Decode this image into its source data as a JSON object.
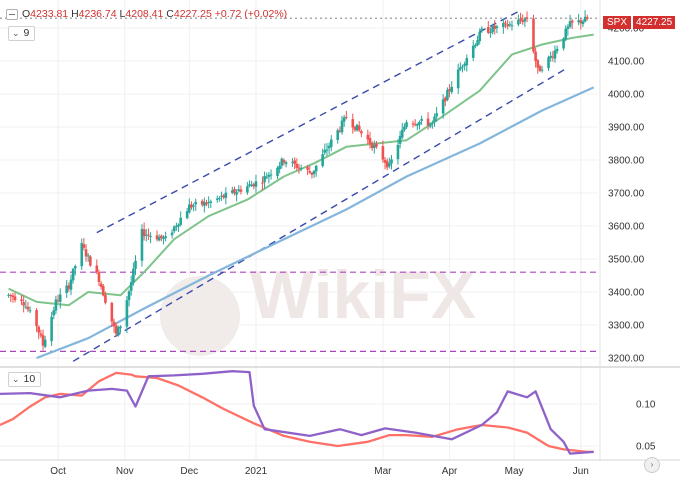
{
  "header": {
    "open_label": "O",
    "open": "4233.81",
    "high_label": "H",
    "high": "4236.74",
    "low_label": "L",
    "low": "4208.41",
    "close_label": "C",
    "close": "4227.25",
    "change": "+0.72 (+0.02%)"
  },
  "price_tag": {
    "symbol": "SPX",
    "value": "4227.25"
  },
  "indicator_labels": {
    "main": "9",
    "lower": "10"
  },
  "watermark": {
    "text": "WikiFX"
  },
  "colors": {
    "bull": "#26a69a",
    "bear": "#ef5350",
    "ma_short": "#7ec48b",
    "ma_long": "#83b6dc",
    "channel": "#3949ab",
    "support": "#ab47bc",
    "corr_a": "#ff7067",
    "corr_b": "#8e62c8",
    "price_tag": "#d32f2f"
  },
  "chart_data": [
    {
      "type": "candlestick",
      "symbol": "SPX",
      "ylim": [
        3180,
        4280
      ],
      "y_ticks": [
        "4200.00",
        "4100.00",
        "4000.00",
        "3900.00",
        "3800.00",
        "3700.00",
        "3600.00",
        "3500.00",
        "3400.00",
        "3300.00",
        "3200.00"
      ],
      "x_tick_labels": [
        "Oct",
        "Nov",
        "Dec",
        "2021",
        "Mar",
        "Apr",
        "May",
        "Jun"
      ],
      "price_anchors": {
        "dates": [
          "2020-09-08",
          "2020-09-14",
          "2020-09-21",
          "2020-09-24",
          "2020-09-30",
          "2020-10-06",
          "2020-10-12",
          "2020-10-20",
          "2020-10-28",
          "2020-10-30",
          "2020-11-04",
          "2020-11-09",
          "2020-11-20",
          "2020-12-01",
          "2020-12-10",
          "2020-12-21",
          "2021-01-04",
          "2021-01-14",
          "2021-01-27",
          "2021-02-12",
          "2021-02-25",
          "2021-03-04",
          "2021-03-12",
          "2021-03-24",
          "2021-04-06",
          "2021-04-16",
          "2021-04-29",
          "2021-05-07",
          "2021-05-12",
          "2021-05-19",
          "2021-05-27",
          "2021-06-04"
        ],
        "close": [
          3390,
          3380,
          3300,
          3240,
          3370,
          3420,
          3540,
          3440,
          3270,
          3300,
          3430,
          3580,
          3560,
          3660,
          3670,
          3700,
          3740,
          3800,
          3760,
          3930,
          3840,
          3780,
          3920,
          3910,
          4080,
          4190,
          4210,
          4230,
          4070,
          4120,
          4210,
          4227
        ]
      },
      "ma_short": {
        "dates": [
          "2020-09-08",
          "2020-09-21",
          "2020-10-06",
          "2020-10-15",
          "2020-10-30",
          "2020-11-10",
          "2020-11-24",
          "2020-12-10",
          "2020-12-28",
          "2021-01-14",
          "2021-01-28",
          "2021-02-12",
          "2021-02-26",
          "2021-03-12",
          "2021-03-26",
          "2021-04-15",
          "2021-04-30",
          "2021-05-14",
          "2021-05-28",
          "2021-06-07"
        ],
        "values": [
          3410,
          3370,
          3360,
          3400,
          3390,
          3460,
          3560,
          3630,
          3680,
          3750,
          3790,
          3840,
          3850,
          3860,
          3920,
          4010,
          4120,
          4150,
          4170,
          4180
        ]
      },
      "ma_long": {
        "dates": [
          "2020-09-21",
          "2020-10-15",
          "2020-11-10",
          "2020-12-10",
          "2021-01-14",
          "2021-02-12",
          "2021-03-12",
          "2021-04-15",
          "2021-05-14",
          "2021-06-07"
        ],
        "values": [
          3200,
          3260,
          3350,
          3450,
          3560,
          3650,
          3750,
          3850,
          3950,
          4020
        ]
      },
      "channel_upper": {
        "dates": [
          "2020-10-19",
          "2021-05-03"
        ],
        "values": [
          3580,
          4250
        ]
      },
      "channel_lower": {
        "dates": [
          "2020-10-08",
          "2021-05-26"
        ],
        "values": [
          3190,
          4080
        ]
      },
      "support_lines": [
        3460,
        3220
      ]
    },
    {
      "type": "line",
      "label": "10",
      "ylim": [
        0.025,
        0.155
      ],
      "y_ticks": [
        "0.10",
        "0.05"
      ],
      "series": [
        {
          "dates": [
            "2020-09-04",
            "2020-09-10",
            "2020-09-18",
            "2020-09-25",
            "2020-10-02",
            "2020-10-12",
            "2020-10-20",
            "2020-10-28",
            "2020-11-04",
            "2020-11-06",
            "2020-11-16",
            "2020-11-26",
            "2020-12-07",
            "2020-12-17",
            "2020-12-31",
            "2021-01-14",
            "2021-01-26",
            "2021-02-08",
            "2021-02-22",
            "2021-03-04",
            "2021-03-12",
            "2021-03-24",
            "2021-04-05",
            "2021-04-16",
            "2021-04-28",
            "2021-05-07",
            "2021-05-17",
            "2021-05-24",
            "2021-06-04",
            "2021-06-07"
          ],
          "values": [
            0.075,
            0.082,
            0.097,
            0.108,
            0.112,
            0.11,
            0.127,
            0.137,
            0.135,
            0.133,
            0.131,
            0.122,
            0.108,
            0.094,
            0.077,
            0.062,
            0.055,
            0.05,
            0.055,
            0.063,
            0.063,
            0.061,
            0.07,
            0.075,
            0.072,
            0.066,
            0.05,
            0.046,
            0.043,
            0.043
          ]
        },
        {
          "dates": [
            "2020-09-04",
            "2020-09-18",
            "2020-10-02",
            "2020-10-15",
            "2020-10-26",
            "2020-11-02",
            "2020-11-06",
            "2020-11-12",
            "2020-11-24",
            "2020-12-07",
            "2020-12-21",
            "2020-12-29",
            "2020-12-31",
            "2021-01-05",
            "2021-01-26",
            "2021-02-09",
            "2021-02-19",
            "2021-03-02",
            "2021-03-16",
            "2021-04-02",
            "2021-04-16",
            "2021-04-23",
            "2021-04-28",
            "2021-05-07",
            "2021-05-11",
            "2021-05-18",
            "2021-05-24",
            "2021-05-27",
            "2021-06-07"
          ],
          "values": [
            0.112,
            0.113,
            0.108,
            0.116,
            0.118,
            0.116,
            0.097,
            0.133,
            0.134,
            0.136,
            0.139,
            0.138,
            0.098,
            0.07,
            0.062,
            0.07,
            0.063,
            0.071,
            0.066,
            0.058,
            0.075,
            0.09,
            0.115,
            0.108,
            0.115,
            0.07,
            0.055,
            0.041,
            0.043
          ]
        }
      ]
    }
  ]
}
